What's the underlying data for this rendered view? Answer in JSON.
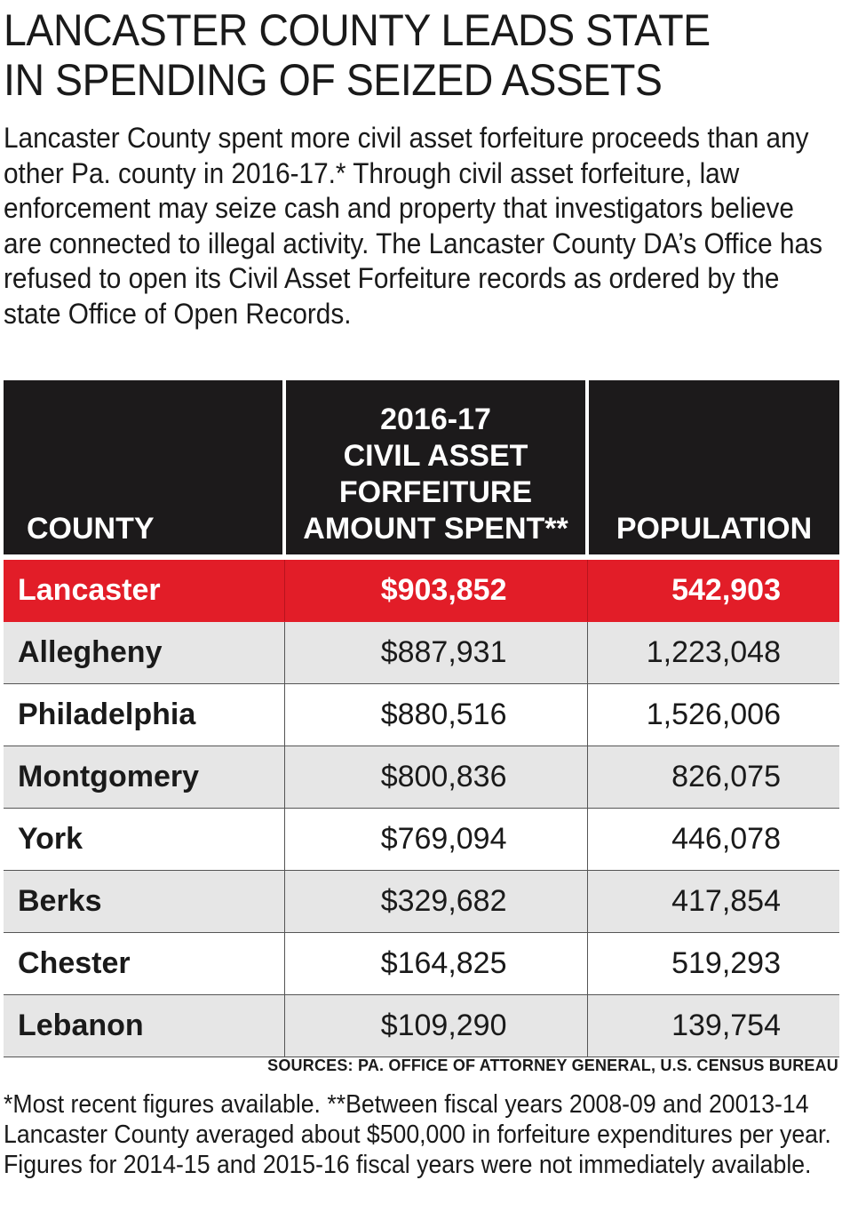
{
  "title_line1": "LANCASTER COUNTY LEADS STATE",
  "title_line2": "IN SPENDING OF SEIZED ASSETS",
  "intro": "Lancaster County spent more civil asset forfeiture proceeds than any other Pa. county in 2016-17.* Through civil asset forfeiture, law enforcement may seize cash and property that investigators believe are connected to illegal activity. The Lancaster County DA’s Office has refused to open its Civil Asset Forfeiture records as ordered by the state Office of Open Records.",
  "chart_data": {
    "type": "table",
    "columns": {
      "county": "COUNTY",
      "amount_lines": [
        "2016-17",
        "CIVIL ASSET",
        "FORFEITURE",
        "AMOUNT SPENT**"
      ],
      "population": "POPULATION"
    },
    "rows": [
      {
        "county": "Lancaster",
        "amount": "$903,852",
        "population": "542,903",
        "highlight": true
      },
      {
        "county": "Allegheny",
        "amount": "$887,931",
        "population": "1,223,048"
      },
      {
        "county": "Philadelphia",
        "amount": "$880,516",
        "population": "1,526,006"
      },
      {
        "county": "Montgomery",
        "amount": "$800,836",
        "population": "826,075"
      },
      {
        "county": "York",
        "amount": "$769,094",
        "population": "446,078"
      },
      {
        "county": "Berks",
        "amount": "$329,682",
        "population": "417,854"
      },
      {
        "county": "Chester",
        "amount": "$164,825",
        "population": "519,293"
      },
      {
        "county": "Lebanon",
        "amount": "$109,290",
        "population": "139,754"
      }
    ]
  },
  "colors": {
    "highlight": "#e21d28",
    "header": "#1c1a1b",
    "alt_row": "#e6e6e6"
  },
  "sources": "SOURCES:  PA. OFFICE OF ATTORNEY GENERAL, U.S. CENSUS BUREAU",
  "footnote": "*Most recent figures available.  **Between fiscal years 2008-09 and 20013-14 Lancaster County averaged about $500,000 in forfeiture expenditures per year. Figures for 2014-15 and 2015-16 fiscal years were not immediately available."
}
